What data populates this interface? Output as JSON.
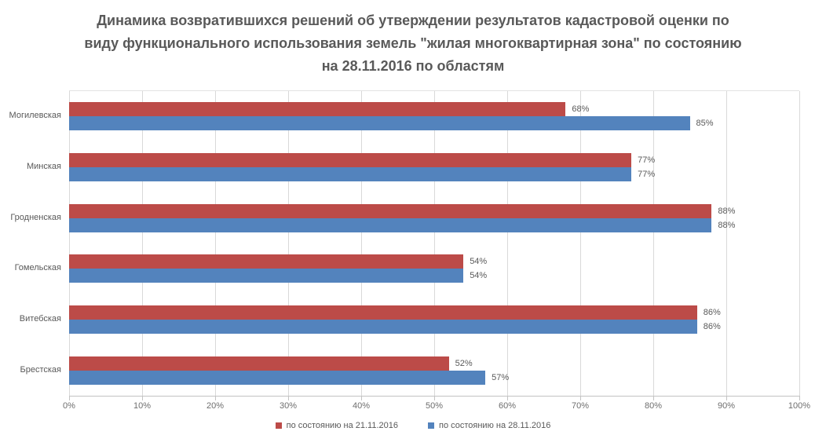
{
  "chart_data": {
    "type": "bar",
    "orientation": "horizontal",
    "title": "Динамика возвратившихся решений об утверждении результатов кадастровой оценки по виду функционального использования земель \"жилая многоквартирная зона\" по состоянию на 28.11.2016 по областям",
    "categories": [
      "Могилевская",
      "Минская",
      "Гродненская",
      "Гомельская",
      "Витебская",
      "Брестская"
    ],
    "series": [
      {
        "name": "по состоянию на 21.11.2016",
        "color": "#bc4b48",
        "values": [
          68,
          77,
          88,
          54,
          86,
          52
        ]
      },
      {
        "name": "по состоянию на 28.11.2016",
        "color": "#5383bd",
        "values": [
          85,
          77,
          88,
          54,
          86,
          57
        ]
      }
    ],
    "value_suffix": "%",
    "x_ticks": [
      "0%",
      "10%",
      "20%",
      "30%",
      "40%",
      "50%",
      "60%",
      "70%",
      "80%",
      "90%",
      "100%"
    ],
    "xlabel": "",
    "ylabel": "",
    "xlim": [
      0,
      100
    ],
    "grid": true,
    "gridline_color": "#d9d9d9",
    "text_color": "#595959",
    "legend_position": "bottom"
  }
}
